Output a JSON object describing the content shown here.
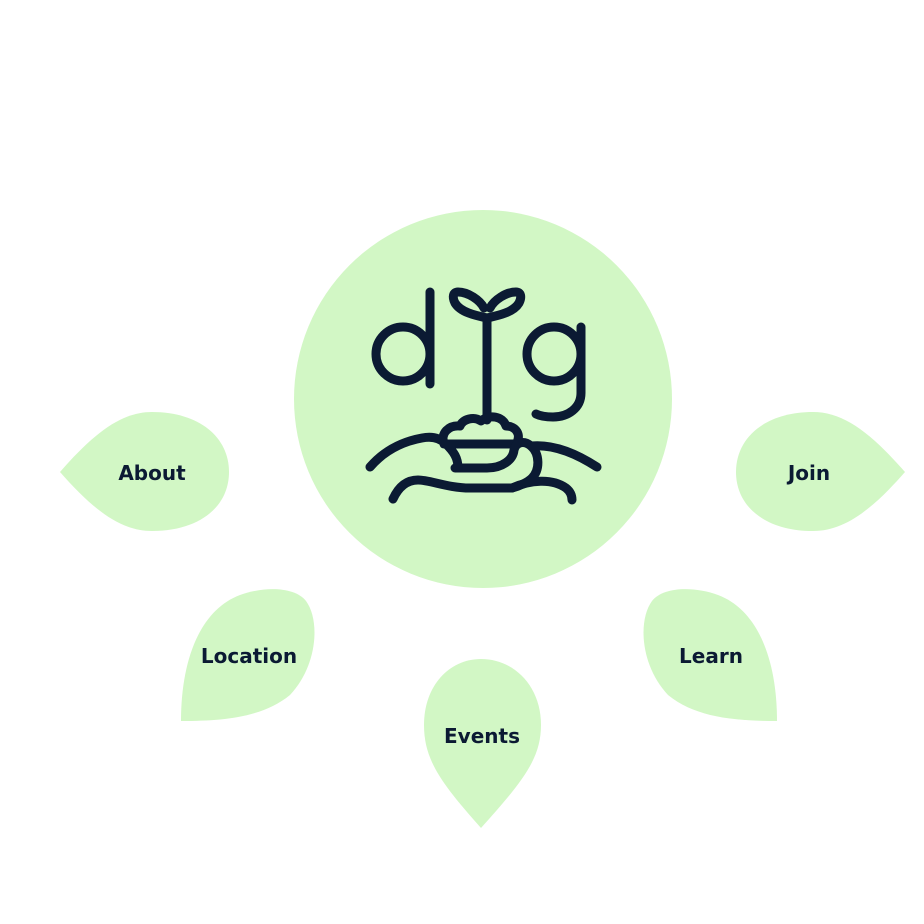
{
  "logo": {
    "letters": "dig",
    "icon": "seedling-in-hand-icon",
    "circle_color": "#d2f7c5",
    "ink_color": "#0b1a33"
  },
  "nav": {
    "petal_color": "#d2f7c5",
    "items": [
      {
        "label": "About",
        "icon": "leaf-petal"
      },
      {
        "label": "Join",
        "icon": "leaf-petal"
      },
      {
        "label": "Location",
        "icon": "leaf-petal"
      },
      {
        "label": "Learn",
        "icon": "leaf-petal"
      },
      {
        "label": "Events",
        "icon": "leaf-petal"
      }
    ]
  }
}
